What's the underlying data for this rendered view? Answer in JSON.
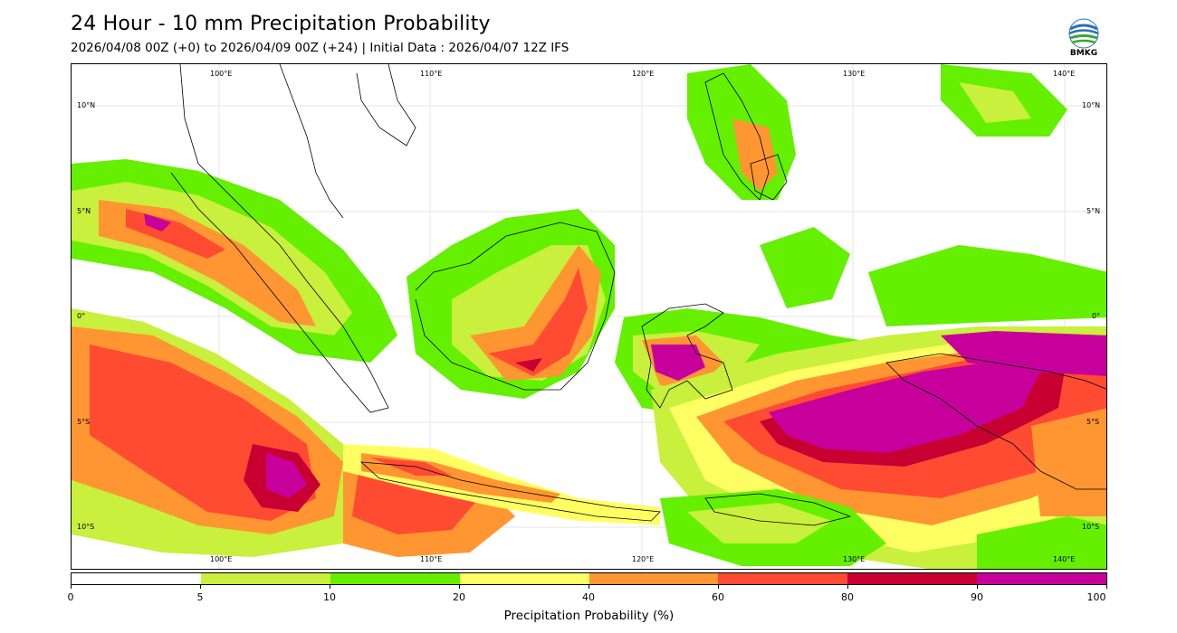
{
  "header": {
    "title": "24 Hour - 10 mm Precipitation Probability",
    "subtitle": "2026/04/08 00Z (+0) to 2026/04/09 00Z (+24) | Initial Data : 2026/04/07 12Z IFS"
  },
  "logo": {
    "text": "BMKG",
    "icon": "bmkg-logo"
  },
  "map": {
    "lon_labels": [
      "100°E",
      "110°E",
      "120°E",
      "130°E",
      "140°E"
    ],
    "lat_labels_left": [
      "10°N",
      "5°N",
      "0°",
      "5°S",
      "10°S"
    ],
    "lat_labels_right": [
      "10°N",
      "5°N",
      "0°",
      "5°S",
      "10°S"
    ],
    "extent": {
      "lon": [
        94,
        143
      ],
      "lat": [
        -12,
        12
      ]
    }
  },
  "colorbar": {
    "title": "Precipitation Probability (%)",
    "ticks": [
      "0",
      "5",
      "10",
      "20",
      "40",
      "60",
      "80",
      "90",
      "100"
    ],
    "colors": [
      "#ffffff",
      "#c8f03c",
      "#64f000",
      "#ffff64",
      "#ff9632",
      "#ff4b32",
      "#c80032",
      "#c8009b"
    ]
  },
  "colors": {
    "white": "#ffffff",
    "yellow_green": "#c8f03c",
    "green": "#64f000",
    "yellow": "#ffff64",
    "orange": "#ff9632",
    "red": "#ff4b32",
    "dark_red": "#c80032",
    "magenta": "#c8009b"
  }
}
